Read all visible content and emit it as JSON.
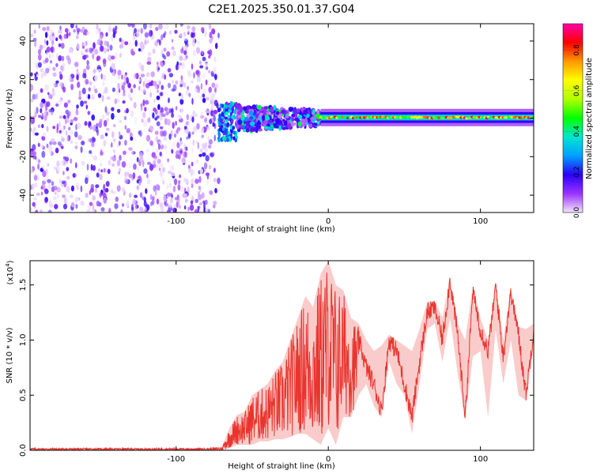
{
  "page_title": "C2E1.2025.350.01.37.G04",
  "chart_data": [
    {
      "type": "heatmap",
      "title": "C2E1.2025.350.01.37.G04",
      "xlabel": "Height of straight line (km)",
      "ylabel": "Frequency (Hz)",
      "xlim": [
        -196,
        135
      ],
      "ylim": [
        -49,
        49
      ],
      "x_ticks": [
        -100,
        0,
        100
      ],
      "x_tick_labels": [
        "-100",
        "0",
        "100"
      ],
      "y_ticks": [
        -40,
        -20,
        0,
        20,
        40
      ],
      "y_tick_labels": [
        "-40",
        "-20",
        "0",
        "20",
        "40"
      ],
      "grid": false,
      "colorbar": {
        "label": "Normalized spectral amplitude",
        "range": [
          0,
          0.93
        ],
        "ticks": [
          0.0,
          0.2,
          0.4,
          0.6,
          0.8
        ],
        "tick_labels": [
          "0.0",
          "0.2",
          "0.4",
          "0.6",
          "0.8"
        ],
        "colors": [
          "#f2e6ff",
          "#9a33ff",
          "#2a00ff",
          "#00a0ff",
          "#00e6d0",
          "#00ff00",
          "#b0ff00",
          "#ffff00",
          "#ff9900",
          "#ff0000",
          "#ff00aa"
        ]
      },
      "regions": [
        {
          "name": "noise",
          "x_range": [
            -196,
            -72
          ],
          "freq_range": [
            -49,
            49
          ],
          "amplitude_range": [
            0.0,
            0.2
          ]
        },
        {
          "name": "onset",
          "x_range": [
            -72,
            -60
          ],
          "freq_range": [
            -12,
            8
          ],
          "amplitude_range": [
            0.1,
            0.4
          ]
        },
        {
          "name": "turbulent",
          "x_range": [
            -60,
            -5
          ],
          "freq_range": [
            -7,
            7
          ],
          "amplitude_range": [
            0.2,
            0.5
          ]
        },
        {
          "name": "carrier",
          "x_range": [
            -5,
            135
          ],
          "freq_center": 0.3,
          "freq_halfwidth": 1.5,
          "amplitude_range": [
            0.4,
            0.9
          ]
        }
      ]
    },
    {
      "type": "line",
      "xlabel": "Height of straight line (km)",
      "ylabel": "SNR (10 * v/v)",
      "y_multiplier_label": "(x10",
      "y_multiplier_exp": "4",
      "xlim": [
        -196,
        135
      ],
      "ylim": [
        0,
        1.72
      ],
      "x_ticks": [
        -100,
        0,
        100
      ],
      "x_tick_labels": [
        "-100",
        "0",
        "100"
      ],
      "y_ticks": [
        0.0,
        0.5,
        1.0,
        1.5
      ],
      "y_tick_labels": [
        "0.0",
        "0.5",
        "1.0",
        "1.5"
      ],
      "grid": false,
      "series_color": "#e8352e",
      "series": [
        {
          "values_note_free": true,
          "x": [
            -196,
            -180,
            -160,
            -140,
            -120,
            -100,
            -80,
            -70,
            -65,
            -60,
            -55,
            -50,
            -45,
            -40,
            -35,
            -30,
            -25,
            -20,
            -15,
            -10,
            -5,
            0,
            5,
            10,
            15,
            20,
            25,
            30,
            35,
            40,
            45,
            50,
            55,
            60,
            65,
            70,
            75,
            80,
            85,
            90,
            95,
            100,
            105,
            110,
            115,
            120,
            125,
            130,
            135
          ],
          "y": [
            0.01,
            0.01,
            0.01,
            0.01,
            0.01,
            0.01,
            0.01,
            0.02,
            0.12,
            0.16,
            0.22,
            0.26,
            0.3,
            0.35,
            0.38,
            0.45,
            0.62,
            0.88,
            1.2,
            1.0,
            1.1,
            1.72,
            1.15,
            1.3,
            0.95,
            1.0,
            0.75,
            0.6,
            0.35,
            1.0,
            0.9,
            0.6,
            0.3,
            0.8,
            1.25,
            1.3,
            1.0,
            1.55,
            1.05,
            0.3,
            1.45,
            1.1,
            0.9,
            1.5,
            0.85,
            1.45,
            1.05,
            0.5,
            1.1
          ],
          "envelope_high": [
            0.02,
            0.02,
            0.02,
            0.02,
            0.02,
            0.02,
            0.02,
            0.03,
            0.2,
            0.32,
            0.35,
            0.5,
            0.55,
            0.6,
            0.72,
            0.8,
            1.0,
            1.2,
            1.4,
            1.3,
            1.6,
            1.72,
            1.5,
            1.45,
            1.2,
            1.15,
            1.0,
            0.9,
            0.95,
            1.05,
            1.0,
            0.95,
            0.9,
            1.1,
            1.35,
            1.35,
            1.2,
            1.57,
            1.15,
            1.0,
            1.5,
            1.2,
            1.0,
            1.52,
            1.0,
            1.48,
            1.12,
            1.1,
            1.15
          ],
          "envelope_low": [
            0.0,
            0.0,
            0.0,
            0.0,
            0.0,
            0.0,
            0.0,
            0.0,
            0.02,
            0.05,
            0.05,
            0.05,
            0.08,
            0.08,
            0.1,
            0.1,
            0.12,
            0.15,
            0.15,
            0.1,
            0.05,
            0.2,
            0.05,
            0.3,
            0.3,
            0.5,
            0.6,
            0.4,
            0.3,
            0.8,
            0.6,
            0.5,
            0.15,
            0.6,
            1.1,
            1.15,
            0.8,
            1.2,
            0.7,
            0.28,
            0.85,
            0.9,
            0.3,
            1.1,
            0.6,
            1.0,
            0.5,
            0.45,
            1.0
          ]
        }
      ]
    }
  ]
}
